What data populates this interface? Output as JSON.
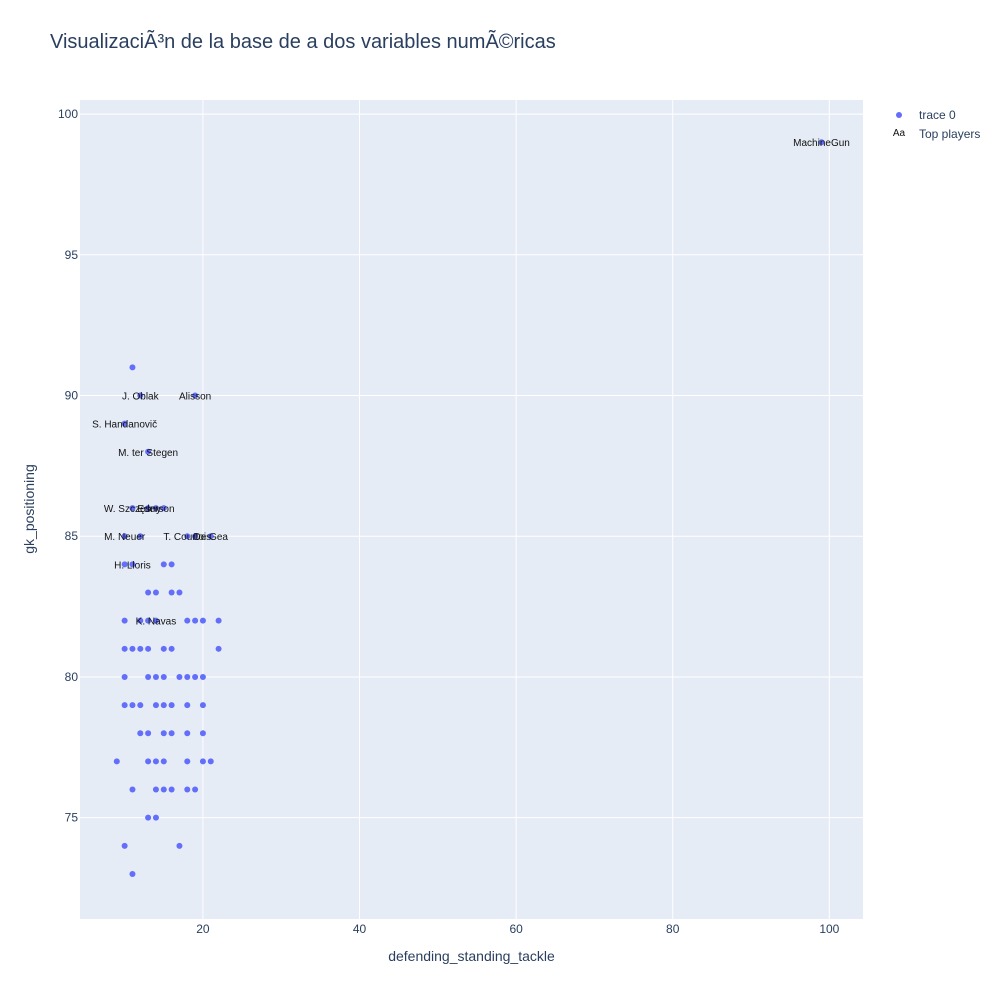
{
  "chart_data": {
    "type": "scatter",
    "title": "VisualizaciÃ³n de la base de a dos variables numÃ©ricas",
    "xlabel": "defending_standing_tackle",
    "ylabel": "gk_positioning",
    "xlim": [
      4.3,
      104.3
    ],
    "ylim": [
      71.4,
      100.5
    ],
    "x_ticks": [
      20,
      40,
      60,
      80,
      100
    ],
    "y_ticks": [
      75,
      80,
      85,
      90,
      95,
      100
    ],
    "grid": true,
    "legend_position": "top-right",
    "colors": {
      "points": "#636efa",
      "plot_bg": "#e5ecf6",
      "grid": "#ffffff",
      "axis_text": "#2a3f5f",
      "label_text": "#111111"
    },
    "series": [
      {
        "name": "trace 0",
        "mode": "markers",
        "points": [
          [
            11,
            91
          ],
          [
            12,
            90
          ],
          [
            19,
            90
          ],
          [
            10,
            89
          ],
          [
            13,
            88
          ],
          [
            11,
            86
          ],
          [
            13,
            86
          ],
          [
            14,
            86
          ],
          [
            15,
            86
          ],
          [
            10,
            85
          ],
          [
            12,
            85
          ],
          [
            18,
            85
          ],
          [
            19,
            85
          ],
          [
            21,
            85
          ],
          [
            10,
            84
          ],
          [
            11,
            84
          ],
          [
            15,
            84
          ],
          [
            16,
            84
          ],
          [
            13,
            83
          ],
          [
            14,
            83
          ],
          [
            16,
            83
          ],
          [
            17,
            83
          ],
          [
            10,
            82
          ],
          [
            12,
            82
          ],
          [
            13,
            82
          ],
          [
            14,
            82
          ],
          [
            18,
            82
          ],
          [
            19,
            82
          ],
          [
            20,
            82
          ],
          [
            22,
            82
          ],
          [
            10,
            81
          ],
          [
            11,
            81
          ],
          [
            12,
            81
          ],
          [
            13,
            81
          ],
          [
            15,
            81
          ],
          [
            16,
            81
          ],
          [
            22,
            81
          ],
          [
            10,
            80
          ],
          [
            13,
            80
          ],
          [
            14,
            80
          ],
          [
            15,
            80
          ],
          [
            17,
            80
          ],
          [
            18,
            80
          ],
          [
            19,
            80
          ],
          [
            20,
            80
          ],
          [
            10,
            79
          ],
          [
            11,
            79
          ],
          [
            12,
            79
          ],
          [
            14,
            79
          ],
          [
            15,
            79
          ],
          [
            16,
            79
          ],
          [
            18,
            79
          ],
          [
            20,
            79
          ],
          [
            12,
            78
          ],
          [
            13,
            78
          ],
          [
            15,
            78
          ],
          [
            16,
            78
          ],
          [
            18,
            78
          ],
          [
            20,
            78
          ],
          [
            9,
            77
          ],
          [
            13,
            77
          ],
          [
            14,
            77
          ],
          [
            15,
            77
          ],
          [
            18,
            77
          ],
          [
            20,
            77
          ],
          [
            21,
            77
          ],
          [
            11,
            76
          ],
          [
            14,
            76
          ],
          [
            15,
            76
          ],
          [
            16,
            76
          ],
          [
            18,
            76
          ],
          [
            19,
            76
          ],
          [
            13,
            75
          ],
          [
            14,
            75
          ],
          [
            10,
            74
          ],
          [
            17,
            74
          ],
          [
            11,
            73
          ],
          [
            99,
            99
          ]
        ]
      },
      {
        "name": "Top players",
        "mode": "text",
        "points": [
          {
            "x": 12,
            "y": 90,
            "label": "J. Oblak"
          },
          {
            "x": 19,
            "y": 90,
            "label": "Alisson"
          },
          {
            "x": 10,
            "y": 89,
            "label": "S. Handanovič"
          },
          {
            "x": 13,
            "y": 88,
            "label": "M. ter Stegen"
          },
          {
            "x": 11,
            "y": 86,
            "label": "W. Szczęsny"
          },
          {
            "x": 14,
            "y": 86,
            "label": "Ederson"
          },
          {
            "x": 10,
            "y": 85,
            "label": "M. Neuer"
          },
          {
            "x": 18,
            "y": 85,
            "label": "T. Courtois"
          },
          {
            "x": 21,
            "y": 85,
            "label": "De Gea"
          },
          {
            "x": 11,
            "y": 84,
            "label": "H. Lloris"
          },
          {
            "x": 14,
            "y": 82,
            "label": "K. Navas"
          },
          {
            "x": 99,
            "y": 99,
            "label": "MachineGun"
          }
        ]
      }
    ]
  },
  "legend": {
    "marker_symbol_text": "Aa"
  }
}
